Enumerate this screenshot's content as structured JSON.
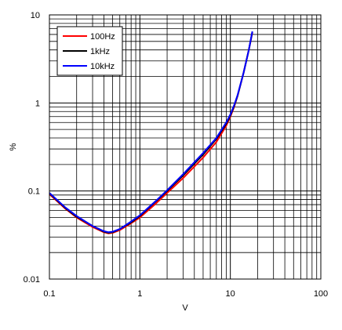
{
  "chart_data": {
    "type": "line",
    "xlabel": "V",
    "ylabel": "%",
    "x_scale": "log",
    "y_scale": "log",
    "xlim": [
      0.1,
      100
    ],
    "ylim": [
      0.01,
      10
    ],
    "x_ticks": [
      {
        "value": 0.1,
        "label": "0.1"
      },
      {
        "value": 1,
        "label": "1"
      },
      {
        "value": 10,
        "label": "10"
      },
      {
        "value": 100,
        "label": "100"
      }
    ],
    "y_ticks": [
      {
        "value": 0.01,
        "label": "0.01"
      },
      {
        "value": 0.1,
        "label": "0.1"
      },
      {
        "value": 1,
        "label": "1"
      },
      {
        "value": 10,
        "label": "10"
      }
    ],
    "grid": true,
    "legend_position": "top-left",
    "series": [
      {
        "name": "100Hz",
        "color": "#ff0000",
        "x": [
          0.1,
          0.15,
          0.2,
          0.3,
          0.4,
          0.45,
          0.5,
          0.6,
          0.8,
          1,
          1.5,
          2,
          3,
          5,
          7,
          9,
          10,
          11,
          12,
          14,
          16,
          17.5
        ],
        "y": [
          0.092,
          0.063,
          0.05,
          0.039,
          0.034,
          0.033,
          0.0335,
          0.036,
          0.043,
          0.05,
          0.072,
          0.095,
          0.14,
          0.24,
          0.36,
          0.55,
          0.7,
          0.9,
          1.2,
          2.2,
          4.0,
          6.3
        ]
      },
      {
        "name": "1kHz",
        "color": "#000000",
        "x": [
          0.1,
          0.15,
          0.2,
          0.3,
          0.4,
          0.45,
          0.5,
          0.6,
          0.8,
          1,
          1.5,
          2,
          3,
          5,
          7,
          9,
          10,
          11,
          12,
          14,
          16,
          17.5
        ],
        "y": [
          0.094,
          0.064,
          0.051,
          0.04,
          0.0345,
          0.0335,
          0.034,
          0.037,
          0.044,
          0.052,
          0.076,
          0.1,
          0.15,
          0.26,
          0.39,
          0.58,
          0.72,
          0.92,
          1.2,
          2.2,
          4.0,
          6.4
        ]
      },
      {
        "name": "10kHz",
        "color": "#0000ff",
        "x": [
          0.1,
          0.15,
          0.2,
          0.3,
          0.4,
          0.45,
          0.5,
          0.6,
          0.8,
          1,
          1.5,
          2,
          3,
          5,
          7,
          9,
          10,
          11,
          12,
          14,
          16,
          17.5
        ],
        "y": [
          0.095,
          0.065,
          0.052,
          0.04,
          0.035,
          0.034,
          0.0345,
          0.037,
          0.045,
          0.053,
          0.077,
          0.102,
          0.155,
          0.27,
          0.4,
          0.6,
          0.74,
          0.94,
          1.22,
          2.2,
          4.0,
          6.5
        ]
      }
    ]
  }
}
